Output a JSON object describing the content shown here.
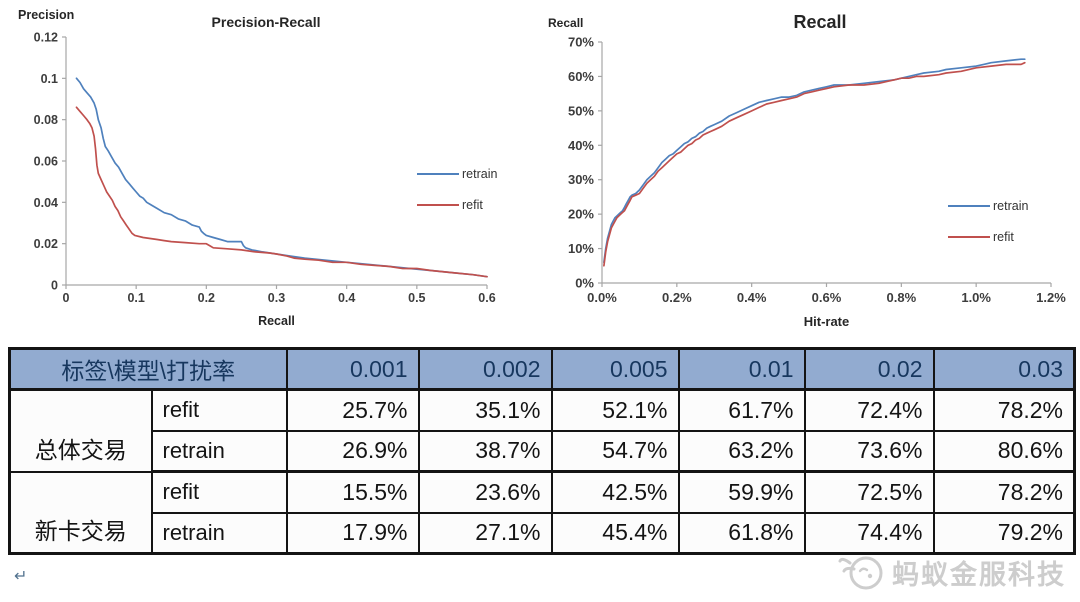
{
  "colors": {
    "retrain": "#4F81BD",
    "refit": "#C0504D",
    "axis": "#a6a6a6",
    "tick_text": "#3d3d3d",
    "table_header_bg": "#92abd0",
    "table_header_text": "#17375e",
    "watermark": "#cdcdcd"
  },
  "footer": {
    "return_mark": "↵",
    "watermark_text": "蚂蚁金服科技"
  },
  "chart_data": [
    {
      "type": "line",
      "title": "Precision-Recall",
      "xlabel": "Recall",
      "ylabel": "Precision",
      "xlim": [
        0,
        0.6
      ],
      "ylim": [
        0,
        0.12
      ],
      "xticks": [
        "0",
        "0.1",
        "0.2",
        "0.3",
        "0.4",
        "0.5",
        "0.6"
      ],
      "yticks": [
        "0",
        "0.02",
        "0.04",
        "0.06",
        "0.08",
        "0.1",
        "0.12"
      ],
      "grid": false,
      "legend_position": "right",
      "series": [
        {
          "name": "retrain",
          "color": "#4F81BD",
          "points": [
            [
              0.015,
              0.1
            ],
            [
              0.02,
              0.098
            ],
            [
              0.025,
              0.095
            ],
            [
              0.03,
              0.093
            ],
            [
              0.035,
              0.091
            ],
            [
              0.04,
              0.088
            ],
            [
              0.043,
              0.085
            ],
            [
              0.046,
              0.08
            ],
            [
              0.05,
              0.076
            ],
            [
              0.053,
              0.071
            ],
            [
              0.056,
              0.067
            ],
            [
              0.06,
              0.065
            ],
            [
              0.065,
              0.062
            ],
            [
              0.07,
              0.059
            ],
            [
              0.075,
              0.057
            ],
            [
              0.08,
              0.054
            ],
            [
              0.085,
              0.051
            ],
            [
              0.09,
              0.049
            ],
            [
              0.095,
              0.047
            ],
            [
              0.1,
              0.045
            ],
            [
              0.105,
              0.043
            ],
            [
              0.11,
              0.042
            ],
            [
              0.115,
              0.04
            ],
            [
              0.12,
              0.039
            ],
            [
              0.13,
              0.037
            ],
            [
              0.14,
              0.035
            ],
            [
              0.15,
              0.034
            ],
            [
              0.16,
              0.032
            ],
            [
              0.17,
              0.031
            ],
            [
              0.18,
              0.029
            ],
            [
              0.19,
              0.028
            ],
            [
              0.193,
              0.026
            ],
            [
              0.196,
              0.025
            ],
            [
              0.2,
              0.024
            ],
            [
              0.21,
              0.023
            ],
            [
              0.22,
              0.022
            ],
            [
              0.23,
              0.021
            ],
            [
              0.25,
              0.021
            ],
            [
              0.253,
              0.019
            ],
            [
              0.256,
              0.018
            ],
            [
              0.265,
              0.017
            ],
            [
              0.28,
              0.016
            ],
            [
              0.3,
              0.015
            ],
            [
              0.32,
              0.014
            ],
            [
              0.34,
              0.013
            ],
            [
              0.37,
              0.012
            ],
            [
              0.4,
              0.011
            ],
            [
              0.43,
              0.01
            ],
            [
              0.46,
              0.009
            ],
            [
              0.49,
              0.008
            ],
            [
              0.52,
              0.007
            ],
            [
              0.55,
              0.006
            ],
            [
              0.58,
              0.005
            ],
            [
              0.6,
              0.004
            ]
          ]
        },
        {
          "name": "refit",
          "color": "#C0504D",
          "points": [
            [
              0.015,
              0.086
            ],
            [
              0.02,
              0.084
            ],
            [
              0.025,
              0.082
            ],
            [
              0.03,
              0.08
            ],
            [
              0.034,
              0.078
            ],
            [
              0.037,
              0.076
            ],
            [
              0.04,
              0.072
            ],
            [
              0.042,
              0.066
            ],
            [
              0.044,
              0.058
            ],
            [
              0.046,
              0.054
            ],
            [
              0.05,
              0.051
            ],
            [
              0.054,
              0.048
            ],
            [
              0.058,
              0.045
            ],
            [
              0.062,
              0.043
            ],
            [
              0.066,
              0.041
            ],
            [
              0.07,
              0.038
            ],
            [
              0.074,
              0.036
            ],
            [
              0.078,
              0.033
            ],
            [
              0.082,
              0.031
            ],
            [
              0.086,
              0.029
            ],
            [
              0.09,
              0.027
            ],
            [
              0.094,
              0.025
            ],
            [
              0.098,
              0.024
            ],
            [
              0.11,
              0.023
            ],
            [
              0.12,
              0.0225
            ],
            [
              0.13,
              0.022
            ],
            [
              0.14,
              0.0215
            ],
            [
              0.15,
              0.021
            ],
            [
              0.17,
              0.0205
            ],
            [
              0.19,
              0.02
            ],
            [
              0.2,
              0.02
            ],
            [
              0.205,
              0.019
            ],
            [
              0.21,
              0.018
            ],
            [
              0.23,
              0.0175
            ],
            [
              0.25,
              0.017
            ],
            [
              0.27,
              0.016
            ],
            [
              0.29,
              0.0155
            ],
            [
              0.3,
              0.015
            ],
            [
              0.315,
              0.014
            ],
            [
              0.325,
              0.013
            ],
            [
              0.34,
              0.0125
            ],
            [
              0.36,
              0.012
            ],
            [
              0.38,
              0.011
            ],
            [
              0.4,
              0.011
            ],
            [
              0.42,
              0.01
            ],
            [
              0.44,
              0.0095
            ],
            [
              0.46,
              0.009
            ],
            [
              0.48,
              0.008
            ],
            [
              0.5,
              0.008
            ],
            [
              0.52,
              0.007
            ],
            [
              0.55,
              0.006
            ],
            [
              0.58,
              0.005
            ],
            [
              0.6,
              0.004
            ]
          ]
        }
      ]
    },
    {
      "type": "line",
      "title": "Recall",
      "xlabel": "Hit-rate",
      "ylabel": "Recall",
      "xlim": [
        0,
        1.2
      ],
      "ylim": [
        0,
        70
      ],
      "xticks": [
        "0.0%",
        "0.2%",
        "0.4%",
        "0.6%",
        "0.8%",
        "1.0%",
        "1.2%"
      ],
      "yticks": [
        "0%",
        "10%",
        "20%",
        "30%",
        "40%",
        "50%",
        "60%",
        "70%"
      ],
      "grid": false,
      "legend_position": "right",
      "series": [
        {
          "name": "retrain",
          "color": "#4F81BD",
          "points": [
            [
              0.005,
              6
            ],
            [
              0.01,
              10
            ],
            [
              0.015,
              13
            ],
            [
              0.02,
              15
            ],
            [
              0.025,
              17
            ],
            [
              0.03,
              18
            ],
            [
              0.035,
              19
            ],
            [
              0.04,
              19.5
            ],
            [
              0.05,
              20.5
            ],
            [
              0.055,
              21
            ],
            [
              0.06,
              22
            ],
            [
              0.065,
              23
            ],
            [
              0.07,
              24
            ],
            [
              0.075,
              25
            ],
            [
              0.08,
              25.5
            ],
            [
              0.09,
              26
            ],
            [
              0.1,
              27
            ],
            [
              0.11,
              28.5
            ],
            [
              0.12,
              30
            ],
            [
              0.13,
              31
            ],
            [
              0.14,
              32
            ],
            [
              0.15,
              33.5
            ],
            [
              0.16,
              35
            ],
            [
              0.17,
              36
            ],
            [
              0.18,
              37
            ],
            [
              0.19,
              37.5
            ],
            [
              0.2,
              38.5
            ],
            [
              0.21,
              39.5
            ],
            [
              0.22,
              40.5
            ],
            [
              0.23,
              41
            ],
            [
              0.24,
              42
            ],
            [
              0.25,
              42.5
            ],
            [
              0.26,
              43.5
            ],
            [
              0.27,
              44
            ],
            [
              0.28,
              45
            ],
            [
              0.29,
              45.5
            ],
            [
              0.3,
              46
            ],
            [
              0.32,
              47
            ],
            [
              0.34,
              48.5
            ],
            [
              0.36,
              49.5
            ],
            [
              0.38,
              50.5
            ],
            [
              0.4,
              51.5
            ],
            [
              0.42,
              52.5
            ],
            [
              0.44,
              53
            ],
            [
              0.46,
              53.5
            ],
            [
              0.48,
              54
            ],
            [
              0.5,
              54
            ],
            [
              0.52,
              54.5
            ],
            [
              0.54,
              55.5
            ],
            [
              0.56,
              56
            ],
            [
              0.58,
              56.5
            ],
            [
              0.6,
              57
            ],
            [
              0.62,
              57.5
            ],
            [
              0.66,
              57.5
            ],
            [
              0.7,
              58
            ],
            [
              0.74,
              58.5
            ],
            [
              0.78,
              59
            ],
            [
              0.8,
              59.5
            ],
            [
              0.82,
              60
            ],
            [
              0.84,
              60.5
            ],
            [
              0.86,
              61
            ],
            [
              0.9,
              61.5
            ],
            [
              0.92,
              62
            ],
            [
              0.96,
              62.5
            ],
            [
              1.0,
              63
            ],
            [
              1.02,
              63.5
            ],
            [
              1.04,
              64
            ],
            [
              1.08,
              64.5
            ],
            [
              1.12,
              65
            ],
            [
              1.13,
              65
            ]
          ]
        },
        {
          "name": "refit",
          "color": "#C0504D",
          "points": [
            [
              0.005,
              5
            ],
            [
              0.01,
              9
            ],
            [
              0.015,
              12
            ],
            [
              0.02,
              14
            ],
            [
              0.025,
              16
            ],
            [
              0.03,
              17
            ],
            [
              0.035,
              18
            ],
            [
              0.04,
              19
            ],
            [
              0.05,
              20
            ],
            [
              0.055,
              20.5
            ],
            [
              0.06,
              21
            ],
            [
              0.065,
              22
            ],
            [
              0.07,
              23
            ],
            [
              0.075,
              24
            ],
            [
              0.08,
              25
            ],
            [
              0.09,
              25.5
            ],
            [
              0.1,
              26
            ],
            [
              0.11,
              27.5
            ],
            [
              0.12,
              29
            ],
            [
              0.13,
              30
            ],
            [
              0.14,
              31
            ],
            [
              0.15,
              32.5
            ],
            [
              0.16,
              33.5
            ],
            [
              0.17,
              34.5
            ],
            [
              0.18,
              35.5
            ],
            [
              0.19,
              36.5
            ],
            [
              0.2,
              37.5
            ],
            [
              0.21,
              38
            ],
            [
              0.22,
              39
            ],
            [
              0.23,
              40
            ],
            [
              0.24,
              40.5
            ],
            [
              0.25,
              41.5
            ],
            [
              0.26,
              42
            ],
            [
              0.27,
              43
            ],
            [
              0.28,
              43.5
            ],
            [
              0.29,
              44
            ],
            [
              0.3,
              44.5
            ],
            [
              0.32,
              45.5
            ],
            [
              0.34,
              47
            ],
            [
              0.36,
              48
            ],
            [
              0.38,
              49
            ],
            [
              0.4,
              50
            ],
            [
              0.42,
              51
            ],
            [
              0.44,
              52
            ],
            [
              0.46,
              52.5
            ],
            [
              0.48,
              53
            ],
            [
              0.5,
              53.5
            ],
            [
              0.52,
              54
            ],
            [
              0.54,
              55
            ],
            [
              0.56,
              55.5
            ],
            [
              0.58,
              56
            ],
            [
              0.6,
              56.5
            ],
            [
              0.62,
              57
            ],
            [
              0.66,
              57.5
            ],
            [
              0.7,
              57.5
            ],
            [
              0.74,
              58
            ],
            [
              0.78,
              59
            ],
            [
              0.8,
              59.5
            ],
            [
              0.82,
              59.5
            ],
            [
              0.84,
              60
            ],
            [
              0.86,
              60
            ],
            [
              0.9,
              60.5
            ],
            [
              0.92,
              61
            ],
            [
              0.96,
              61.5
            ],
            [
              1.0,
              62.5
            ],
            [
              1.04,
              63
            ],
            [
              1.08,
              63.5
            ],
            [
              1.12,
              63.5
            ],
            [
              1.13,
              64
            ]
          ]
        }
      ]
    },
    {
      "type": "table",
      "header": [
        "标签\\模型\\打扰率",
        "0.001",
        "0.002",
        "0.005",
        "0.01",
        "0.02",
        "0.03"
      ],
      "groups": [
        {
          "label": "总体交易",
          "rows": [
            {
              "model": "refit",
              "values": [
                "25.7%",
                "35.1%",
                "52.1%",
                "61.7%",
                "72.4%",
                "78.2%"
              ]
            },
            {
              "model": "retrain",
              "values": [
                "26.9%",
                "38.7%",
                "54.7%",
                "63.2%",
                "73.6%",
                "80.6%"
              ]
            }
          ]
        },
        {
          "label": "新卡交易",
          "rows": [
            {
              "model": "refit",
              "values": [
                "15.5%",
                "23.6%",
                "42.5%",
                "59.9%",
                "72.5%",
                "78.2%"
              ]
            },
            {
              "model": "retrain",
              "values": [
                "17.9%",
                "27.1%",
                "45.4%",
                "61.8%",
                "74.4%",
                "79.2%"
              ]
            }
          ]
        }
      ]
    }
  ]
}
